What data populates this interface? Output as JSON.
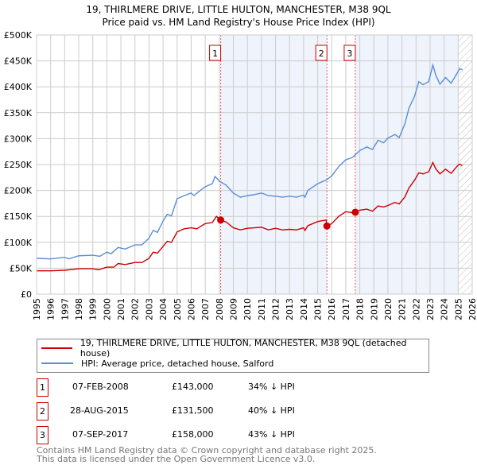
{
  "chart_data": {
    "type": "line",
    "title": "19, THIRLMERE DRIVE, LITTLE HULTON, MANCHESTER, M38 9QL",
    "subtitle": "Price paid vs. HM Land Registry's House Price Index (HPI)",
    "xlim": [
      1995,
      2026
    ],
    "ylim": [
      0,
      500000
    ],
    "y_ticks": [
      {
        "v": 0,
        "label": "£0"
      },
      {
        "v": 50000,
        "label": "£50K"
      },
      {
        "v": 100000,
        "label": "£100K"
      },
      {
        "v": 150000,
        "label": "£150K"
      },
      {
        "v": 200000,
        "label": "£200K"
      },
      {
        "v": 250000,
        "label": "£250K"
      },
      {
        "v": 300000,
        "label": "£300K"
      },
      {
        "v": 350000,
        "label": "£350K"
      },
      {
        "v": 400000,
        "label": "£400K"
      },
      {
        "v": 450000,
        "label": "£450K"
      },
      {
        "v": 500000,
        "label": "£500K"
      }
    ],
    "x_ticks": [
      "1995",
      "1996",
      "1997",
      "1998",
      "1999",
      "2000",
      "2001",
      "2002",
      "2003",
      "2004",
      "2005",
      "2006",
      "2007",
      "2008",
      "2009",
      "2010",
      "2011",
      "2012",
      "2013",
      "2014",
      "2015",
      "2016",
      "2017",
      "2018",
      "2019",
      "2020",
      "2021",
      "2022",
      "2023",
      "2024",
      "2025",
      "2026"
    ],
    "grid": true,
    "forecast_from": 2025.0,
    "series": [
      {
        "name": "19, THIRLMERE DRIVE, LITTLE HULTON, MANCHESTER, M38 9QL (detached house)",
        "color": "#cc0000",
        "points": [
          [
            1995,
            45
          ],
          [
            1996,
            45
          ],
          [
            1997,
            46
          ],
          [
            1998,
            49
          ],
          [
            1999,
            49
          ],
          [
            1999.4,
            47
          ],
          [
            2000,
            52
          ],
          [
            2000.5,
            52
          ],
          [
            2000.8,
            59
          ],
          [
            2001.3,
            57
          ],
          [
            2002,
            61
          ],
          [
            2002.5,
            61
          ],
          [
            2003,
            69
          ],
          [
            2003.3,
            81
          ],
          [
            2003.6,
            79
          ],
          [
            2004,
            92
          ],
          [
            2004.3,
            102
          ],
          [
            2004.6,
            100
          ],
          [
            2005,
            120
          ],
          [
            2005.5,
            126
          ],
          [
            2006,
            128
          ],
          [
            2006.4,
            126
          ],
          [
            2006.7,
            131
          ],
          [
            2007,
            136
          ],
          [
            2007.5,
            138
          ],
          [
            2007.8,
            150
          ],
          [
            2008.1,
            143
          ],
          [
            2008.5,
            139
          ],
          [
            2009,
            128
          ],
          [
            2009.5,
            124
          ],
          [
            2010,
            127
          ],
          [
            2010.5,
            128
          ],
          [
            2011,
            129
          ],
          [
            2011.5,
            124
          ],
          [
            2012,
            127
          ],
          [
            2012.5,
            124
          ],
          [
            2013,
            125
          ],
          [
            2013.5,
            124
          ],
          [
            2014,
            128
          ],
          [
            2014.1,
            123
          ],
          [
            2014.3,
            132
          ],
          [
            2015,
            140
          ],
          [
            2015.6,
            143
          ],
          [
            2015.66,
            131.5
          ],
          [
            2016,
            136
          ],
          [
            2016.5,
            150
          ],
          [
            2017,
            159
          ],
          [
            2017.5,
            157
          ],
          [
            2017.7,
            158
          ],
          [
            2018,
            162
          ],
          [
            2018.5,
            164
          ],
          [
            2018.9,
            160
          ],
          [
            2019.3,
            170
          ],
          [
            2019.7,
            168
          ],
          [
            2020,
            171
          ],
          [
            2020.5,
            177
          ],
          [
            2020.8,
            174
          ],
          [
            2021.2,
            187
          ],
          [
            2021.5,
            205
          ],
          [
            2021.9,
            220
          ],
          [
            2022.2,
            234
          ],
          [
            2022.5,
            232
          ],
          [
            2022.9,
            236
          ],
          [
            2023.2,
            254
          ],
          [
            2023.4,
            242
          ],
          [
            2023.7,
            232
          ],
          [
            2024.1,
            241
          ],
          [
            2024.5,
            233
          ],
          [
            2024.9,
            246
          ],
          [
            2025.1,
            251
          ],
          [
            2025.3,
            248
          ]
        ]
      },
      {
        "name": "HPI: Average price, detached house, Salford",
        "color": "#5b8fd4",
        "points": [
          [
            1995,
            69
          ],
          [
            1996,
            68
          ],
          [
            1997,
            71
          ],
          [
            1997.3,
            68
          ],
          [
            1998,
            74
          ],
          [
            1999,
            75
          ],
          [
            1999.5,
            73
          ],
          [
            2000,
            81
          ],
          [
            2000.3,
            78
          ],
          [
            2000.8,
            90
          ],
          [
            2001.3,
            87
          ],
          [
            2002,
            95
          ],
          [
            2002.5,
            95
          ],
          [
            2003,
            108
          ],
          [
            2003.3,
            123
          ],
          [
            2003.6,
            119
          ],
          [
            2004,
            141
          ],
          [
            2004.3,
            154
          ],
          [
            2004.6,
            151
          ],
          [
            2005,
            184
          ],
          [
            2005.5,
            190
          ],
          [
            2006,
            195
          ],
          [
            2006.2,
            190
          ],
          [
            2006.5,
            197
          ],
          [
            2007,
            207
          ],
          [
            2007.5,
            213
          ],
          [
            2007.7,
            227
          ],
          [
            2008,
            218
          ],
          [
            2008.5,
            210
          ],
          [
            2009,
            195
          ],
          [
            2009.5,
            187
          ],
          [
            2010,
            190
          ],
          [
            2010.5,
            192
          ],
          [
            2011,
            195
          ],
          [
            2011.5,
            190
          ],
          [
            2012,
            189
          ],
          [
            2012.5,
            187
          ],
          [
            2013,
            189
          ],
          [
            2013.5,
            187
          ],
          [
            2014,
            191
          ],
          [
            2014.1,
            187
          ],
          [
            2014.3,
            200
          ],
          [
            2015,
            213
          ],
          [
            2015.6,
            220
          ],
          [
            2016,
            228
          ],
          [
            2016.5,
            246
          ],
          [
            2017,
            259
          ],
          [
            2017.5,
            264
          ],
          [
            2018,
            277
          ],
          [
            2018.5,
            284
          ],
          [
            2018.9,
            279
          ],
          [
            2019.3,
            297
          ],
          [
            2019.7,
            292
          ],
          [
            2020,
            301
          ],
          [
            2020.5,
            308
          ],
          [
            2020.8,
            302
          ],
          [
            2021.2,
            328
          ],
          [
            2021.5,
            359
          ],
          [
            2021.9,
            382
          ],
          [
            2022.2,
            410
          ],
          [
            2022.5,
            404
          ],
          [
            2022.9,
            410
          ],
          [
            2023.2,
            442
          ],
          [
            2023.4,
            423
          ],
          [
            2023.7,
            405
          ],
          [
            2024.1,
            418
          ],
          [
            2024.5,
            407
          ],
          [
            2024.9,
            425
          ],
          [
            2025.1,
            435
          ],
          [
            2025.3,
            433
          ]
        ]
      }
    ],
    "sales": [
      {
        "id": "1",
        "x": 2008.1,
        "price": 143000,
        "date": "07-FEB-2008",
        "price_label": "£143,000",
        "hpi_label": "34% ↓ HPI"
      },
      {
        "id": "2",
        "x": 2015.66,
        "price": 131500,
        "date": "28-AUG-2015",
        "price_label": "£131,500",
        "hpi_label": "40% ↓ HPI"
      },
      {
        "id": "3",
        "x": 2017.68,
        "price": 158000,
        "date": "07-SEP-2017",
        "price_label": "£158,000",
        "hpi_label": "43% ↓ HPI"
      }
    ]
  },
  "footer": {
    "line1": "Contains HM Land Registry data © Crown copyright and database right 2025.",
    "line2": "This data is licensed under the Open Government Licence v3.0."
  }
}
